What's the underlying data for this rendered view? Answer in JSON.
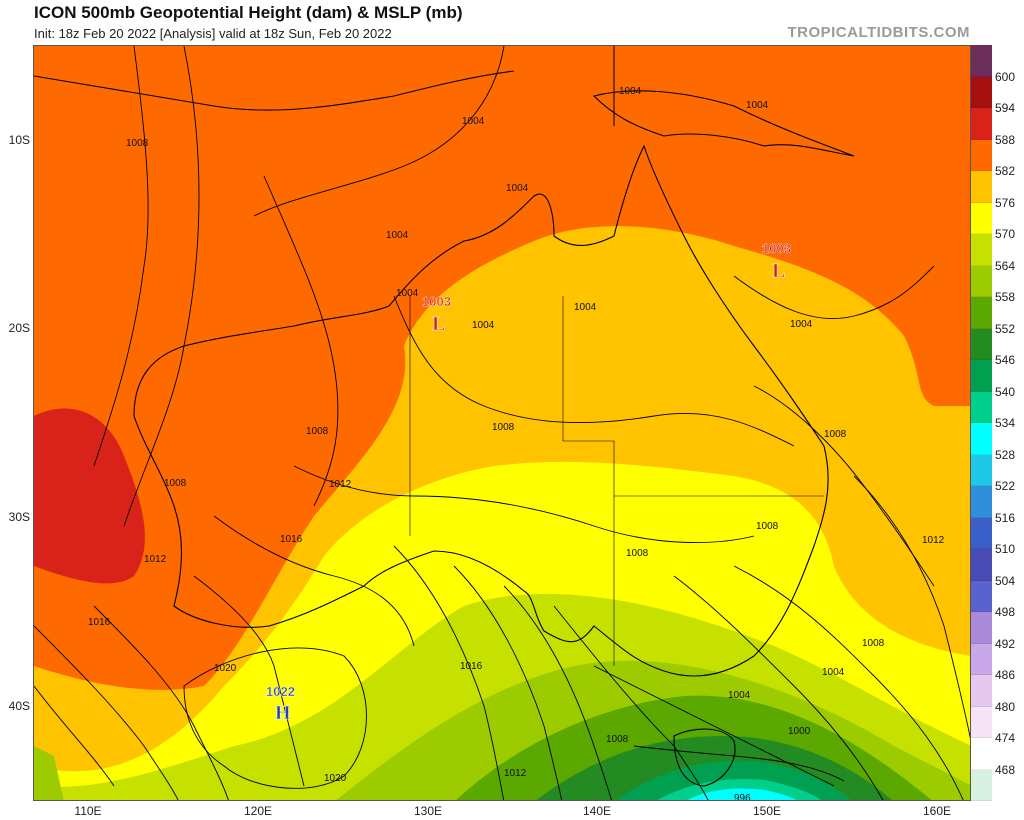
{
  "header": {
    "title": "ICON 500mb Geopotential Height (dam) & MSLP (mb)",
    "subtitle": "Init: 18z Feb 20 2022   [Analysis]   valid at 18z Sun, Feb 20 2022",
    "brand": "TROPICALTIDBITS.COM"
  },
  "axes": {
    "lat_labels": [
      "10S",
      "20S",
      "30S",
      "40S"
    ],
    "lon_labels": [
      "110E",
      "120E",
      "130E",
      "140E",
      "150E",
      "160E"
    ]
  },
  "colorbar": {
    "levels": [
      {
        "label": "600",
        "color": "#6b2d5a"
      },
      {
        "label": "594",
        "color": "#a50f0f"
      },
      {
        "label": "588",
        "color": "#d9221a"
      },
      {
        "label": "582",
        "color": "#ff6a00"
      },
      {
        "label": "576",
        "color": "#ffc300"
      },
      {
        "label": "570",
        "color": "#ffff00"
      },
      {
        "label": "564",
        "color": "#c6e000"
      },
      {
        "label": "558",
        "color": "#9ccc00"
      },
      {
        "label": "552",
        "color": "#5aa800"
      },
      {
        "label": "546",
        "color": "#238b22"
      },
      {
        "label": "540",
        "color": "#00a050"
      },
      {
        "label": "534",
        "color": "#00d08c"
      },
      {
        "label": "528",
        "color": "#00ffff"
      },
      {
        "label": "522",
        "color": "#1ec8e6"
      },
      {
        "label": "516",
        "color": "#2f8fd8"
      },
      {
        "label": "510",
        "color": "#3a5fc8"
      },
      {
        "label": "504",
        "color": "#4a4ab4"
      },
      {
        "label": "498",
        "color": "#5a62d0"
      },
      {
        "label": "492",
        "color": "#a98ad8"
      },
      {
        "label": "486",
        "color": "#c8a8e8"
      },
      {
        "label": "480",
        "color": "#e6c8ee"
      },
      {
        "label": "474",
        "color": "#f6e4f6"
      },
      {
        "label": "468",
        "color": "#ffffff"
      },
      {
        "label": "",
        "color": "#d8f0e0"
      }
    ]
  },
  "pressure_centers": [
    {
      "value": "1003",
      "letter": "L",
      "color": "#d41c1c"
    },
    {
      "value": "1003",
      "letter": "L",
      "color": "#d41c1c"
    },
    {
      "value": "1022",
      "letter": "H",
      "color": "#1f3fbf"
    }
  ],
  "isobar_labels": [
    "1004",
    "1004",
    "1004",
    "1004",
    "1004",
    "1004",
    "1004",
    "1004",
    "1004",
    "1008",
    "1008",
    "1008",
    "1008",
    "1008",
    "1008",
    "1008",
    "1008",
    "1008",
    "1012",
    "1012",
    "1012",
    "1012",
    "1016",
    "1016",
    "1016",
    "1020",
    "1020",
    "1000",
    "996"
  ]
}
